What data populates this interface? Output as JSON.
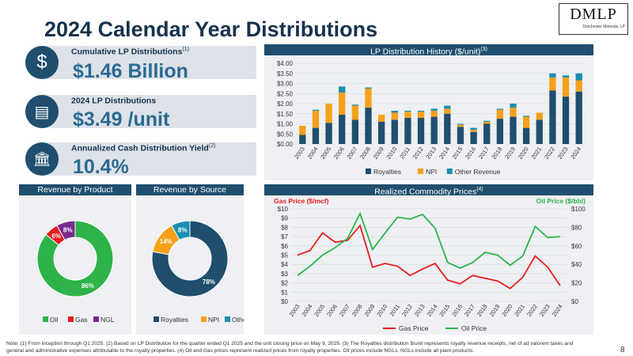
{
  "page": {
    "title": "2024 Calendar Year Distributions",
    "logo_text": "DMLP",
    "logo_sub": "Dorchester Minerals, LP",
    "page_number": "8",
    "note": "Note: (1) From inception through Q1 2025. (2) Based on LP Distribution for the quarter ended Q1 2025 and the unit closing price on May 9, 2025. (3) The Royalties distribution $/unit represents royalty revenue receipts, net of ad valorem taxes and general and administrative expenses attributable to the royalty properties. (4) Oil and Gas prices represent realized prices from royalty properties. Oil prices include NGLs. NGLs include all plant products."
  },
  "kpis": [
    {
      "label": "Cumulative LP Distributions",
      "sup": "(1)",
      "value": "$1.46 Billion",
      "icon": "dollar-icon",
      "glyph": "$"
    },
    {
      "label": "2024 LP Distributions",
      "sup": "",
      "value": "$3.49 /unit",
      "icon": "cash-icon",
      "glyph": "▤"
    },
    {
      "label": "Annualized Cash Distribution Yield",
      "sup": "(2)",
      "value": "10.4%",
      "icon": "bank-icon",
      "glyph": "🏛"
    }
  ],
  "panels": {
    "history": {
      "title": "LP Distribution History ($/unit)",
      "sup": "(3)"
    },
    "product": {
      "title": "Revenue by Product"
    },
    "source": {
      "title": "Revenue by Source"
    },
    "commodity": {
      "title": "Realized Commodity Prices",
      "sup": "(4)"
    }
  },
  "colors": {
    "navy": "#1f4e6e",
    "orange": "#f6a01a",
    "teal": "#1b8fb0",
    "oil": "#2db34a",
    "gas": "#e51f1f",
    "ngl": "#7a2a8e"
  },
  "chart_data": [
    {
      "type": "bar",
      "stacked": true,
      "title": "LP Distribution History ($/unit)",
      "categories": [
        "2003",
        "2004",
        "2005",
        "2006",
        "2007",
        "2008",
        "2009",
        "2010",
        "2011",
        "2012",
        "2013",
        "2014",
        "2015",
        "2016",
        "2017",
        "2018",
        "2019",
        "2020",
        "2021",
        "2022",
        "2023",
        "2024"
      ],
      "series": [
        {
          "name": "Royalties",
          "values": [
            0.45,
            0.8,
            1.05,
            1.45,
            1.2,
            1.8,
            1.1,
            1.2,
            1.3,
            1.3,
            1.35,
            1.5,
            0.85,
            0.6,
            1.0,
            1.25,
            1.35,
            0.8,
            1.2,
            2.65,
            2.35,
            2.6
          ]
        },
        {
          "name": "NPI",
          "values": [
            0.45,
            0.85,
            0.95,
            1.1,
            0.7,
            0.95,
            0.35,
            0.35,
            0.3,
            0.3,
            0.3,
            0.25,
            0.1,
            0.1,
            0.1,
            0.45,
            0.45,
            0.55,
            0.35,
            0.65,
            0.95,
            0.55
          ]
        },
        {
          "name": "Other Revenue",
          "values": [
            0.0,
            0.05,
            0.0,
            0.3,
            0.05,
            0.05,
            0.0,
            0.1,
            0.05,
            0.05,
            0.1,
            0.15,
            0.05,
            0.1,
            0.05,
            0.05,
            0.2,
            0.05,
            0.0,
            0.2,
            0.1,
            0.35
          ]
        }
      ],
      "ylim": [
        0,
        4
      ],
      "yticks": [
        "$0.00",
        "$0.50",
        "$1.00",
        "$1.50",
        "$2.00",
        "$2.50",
        "$3.00",
        "$3.50",
        "$4.00"
      ]
    },
    {
      "type": "pie",
      "title": "Revenue by Product",
      "labels": [
        "Oil",
        "Gas",
        "NGL"
      ],
      "values": [
        86,
        6,
        8
      ],
      "value_labels": [
        "86%",
        "6%",
        "8%"
      ]
    },
    {
      "type": "pie",
      "title": "Revenue by Source",
      "labels": [
        "Royalties",
        "NPI",
        "Other"
      ],
      "values": [
        78,
        14,
        8
      ],
      "value_labels": [
        "78%",
        "14%",
        "8%"
      ]
    },
    {
      "type": "line",
      "title": "Realized Commodity Prices",
      "x": [
        "2003",
        "2004",
        "2005",
        "2006",
        "2007",
        "2008",
        "2009",
        "2010",
        "2011",
        "2012",
        "2013",
        "2014",
        "2015",
        "2016",
        "2017",
        "2018",
        "2019",
        "2020",
        "2021",
        "2022",
        "2023",
        "2024"
      ],
      "series": [
        {
          "name": "Gas Price",
          "axis": "left",
          "values": [
            5.0,
            5.5,
            7.4,
            6.4,
            6.6,
            8.2,
            3.7,
            4.1,
            3.8,
            2.8,
            3.5,
            4.1,
            2.3,
            1.9,
            2.8,
            2.5,
            2.2,
            1.4,
            2.6,
            4.9,
            3.7,
            1.7
          ]
        },
        {
          "name": "Oil Price",
          "axis": "right",
          "values": [
            28,
            38,
            50,
            58,
            68,
            95,
            56,
            74,
            91,
            89,
            94,
            79,
            42,
            36,
            42,
            53,
            50,
            39,
            49,
            81,
            69,
            70
          ]
        }
      ],
      "ylabel_left": "Gas Price ($/mcf)",
      "ylabel_right": "Oil Price ($/bbl)",
      "ylim_left": [
        0,
        10
      ],
      "ylim_right": [
        0,
        100
      ],
      "yticks_left": [
        "$0",
        "$1",
        "$2",
        "$3",
        "$4",
        "$5",
        "$6",
        "$7",
        "$8",
        "$9",
        "$10"
      ],
      "yticks_right": [
        "$0",
        "$20",
        "$40",
        "$60",
        "$80",
        "$100"
      ]
    }
  ]
}
